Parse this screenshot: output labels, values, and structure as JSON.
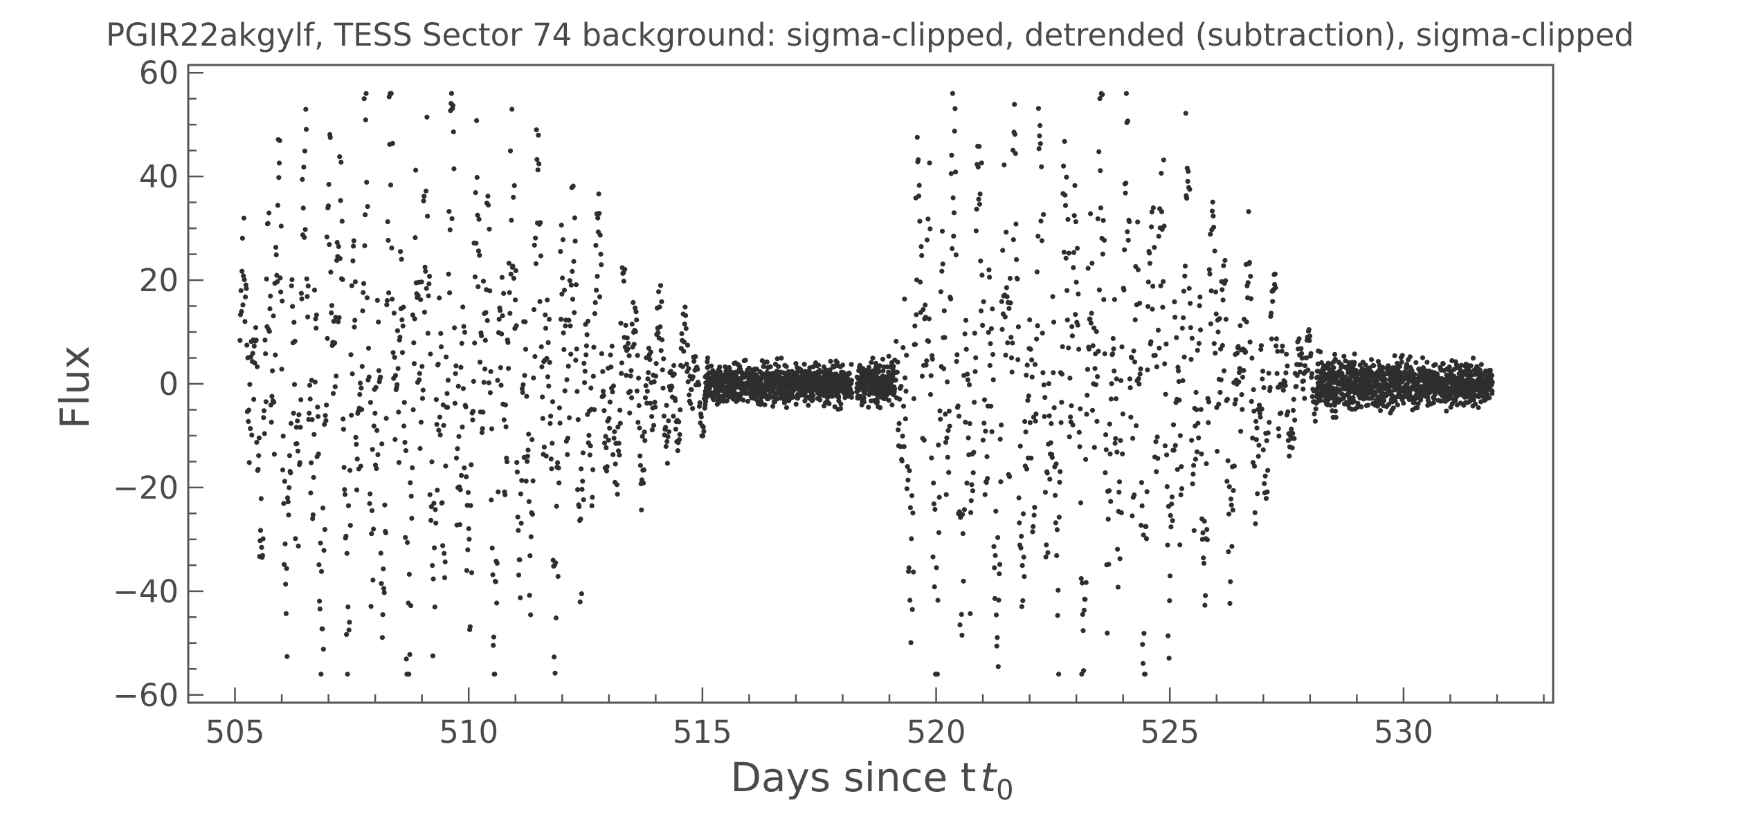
{
  "chart_data": {
    "type": "scatter",
    "title": "PGIR22akgylf, TESS Sector 74 background: sigma-clipped, detrended (subtraction), sigma-clipped",
    "xlabel": "Days since t",
    "xlabel_subscript": "0",
    "ylabel": "Flux",
    "xlim": [
      504.0,
      533.2
    ],
    "ylim": [
      -61.5,
      61.5
    ],
    "xticks": [
      505,
      510,
      515,
      520,
      525,
      530
    ],
    "xtick_labels": [
      "505",
      "510",
      "515",
      "520",
      "525",
      "530"
    ],
    "yticks": [
      -60,
      -40,
      -20,
      0,
      20,
      40,
      60
    ],
    "ytick_labels": [
      "−60",
      "−40",
      "−20",
      "0",
      "20",
      "40",
      "60"
    ],
    "x_minor_step": 1,
    "y_minor_step": 5,
    "grid": false,
    "marker_color": "#2e2e2e",
    "data_x_range": [
      505.1,
      531.9
    ],
    "data_y_range": [
      -56,
      56
    ],
    "gaps": [
      [
        518.2,
        518.3
      ]
    ],
    "envelope": [
      {
        "x": 505.1,
        "amp": 28
      },
      {
        "x": 506.0,
        "amp": 52
      },
      {
        "x": 507.5,
        "amp": 56
      },
      {
        "x": 509.5,
        "amp": 53
      },
      {
        "x": 511.2,
        "amp": 48
      },
      {
        "x": 511.8,
        "amp": 50
      },
      {
        "x": 512.6,
        "amp": 36
      },
      {
        "x": 513.5,
        "amp": 22
      },
      {
        "x": 514.7,
        "amp": 15
      },
      {
        "x": 515.2,
        "amp": 5
      },
      {
        "x": 518.1,
        "amp": 5
      },
      {
        "x": 519.1,
        "amp": 6
      },
      {
        "x": 519.4,
        "amp": 56
      },
      {
        "x": 522.4,
        "amp": 56
      },
      {
        "x": 524.5,
        "amp": 56
      },
      {
        "x": 525.5,
        "amp": 48
      },
      {
        "x": 526.5,
        "amp": 36
      },
      {
        "x": 527.4,
        "amp": 20
      },
      {
        "x": 528.2,
        "amp": 7
      },
      {
        "x": 531.9,
        "amp": 5
      }
    ]
  }
}
